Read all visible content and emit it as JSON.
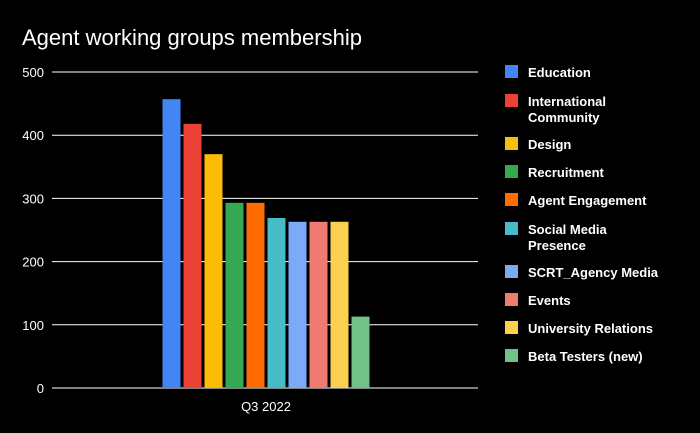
{
  "chart_data": {
    "type": "bar",
    "title": "Agent working groups membership",
    "xlabel": "",
    "ylabel": "",
    "categories": [
      "Q3 2022"
    ],
    "ylim": [
      0,
      500
    ],
    "yticks": [
      0,
      100,
      200,
      300,
      400,
      500
    ],
    "grid": true,
    "legend_position": "right",
    "series": [
      {
        "name": "Education",
        "values": [
          457
        ],
        "color": "#4285F4"
      },
      {
        "name": "International Community",
        "values": [
          418
        ],
        "color": "#EA4335"
      },
      {
        "name": "Design",
        "values": [
          370
        ],
        "color": "#FBBC04"
      },
      {
        "name": "Recruitment",
        "values": [
          293
        ],
        "color": "#34A853"
      },
      {
        "name": "Agent Engagement",
        "values": [
          293
        ],
        "color": "#FF6D01"
      },
      {
        "name": "Social Media Presence",
        "values": [
          269
        ],
        "color": "#46BDC6"
      },
      {
        "name": "SCRT_Agency Media",
        "values": [
          263
        ],
        "color": "#7BAAF7"
      },
      {
        "name": "Events",
        "values": [
          263
        ],
        "color": "#F07B72"
      },
      {
        "name": "University Relations",
        "values": [
          263
        ],
        "color": "#FCD04F"
      },
      {
        "name": "Beta Testers (new)",
        "values": [
          113
        ],
        "color": "#71C287"
      }
    ]
  }
}
